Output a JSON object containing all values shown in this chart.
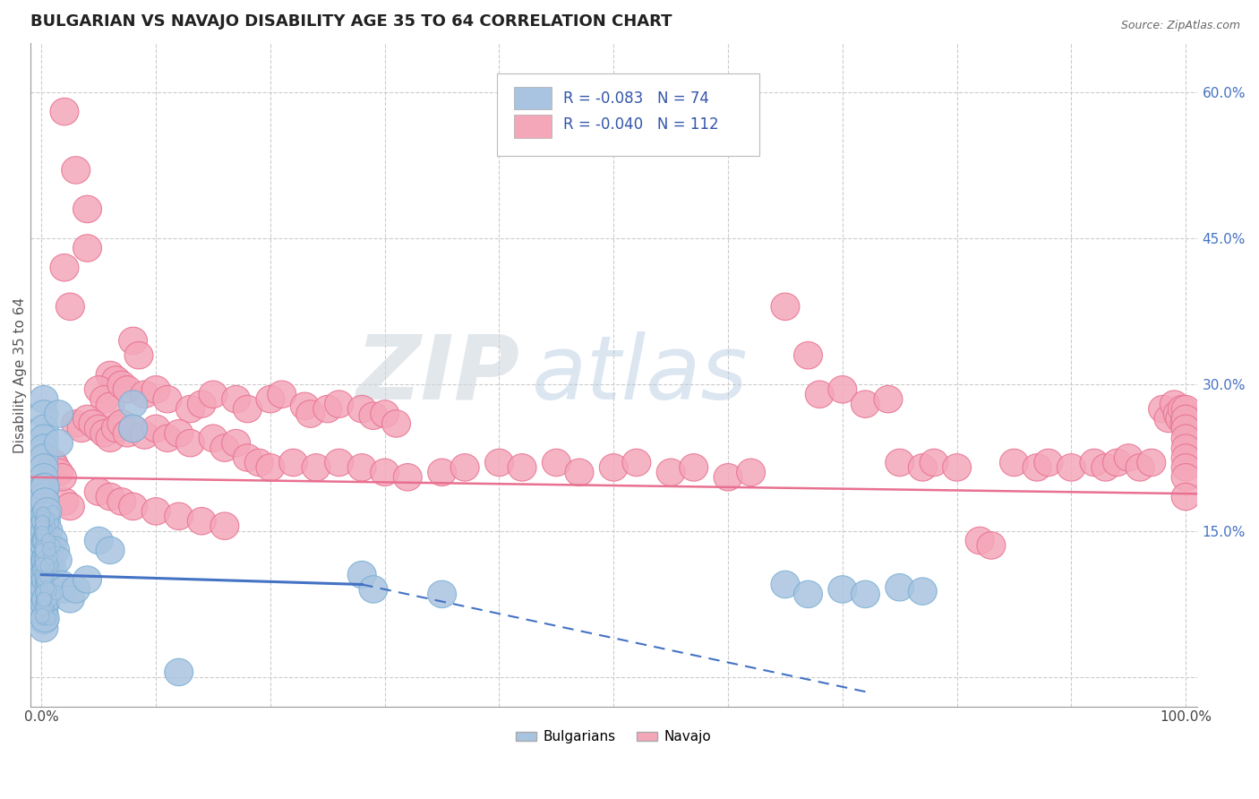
{
  "title": "BULGARIAN VS NAVAJO DISABILITY AGE 35 TO 64 CORRELATION CHART",
  "source": "Source: ZipAtlas.com",
  "ylabel": "Disability Age 35 to 64",
  "xlim": [
    -0.01,
    1.01
  ],
  "ylim": [
    -0.03,
    0.65
  ],
  "x_ticks": [
    0.0,
    0.1,
    0.2,
    0.3,
    0.4,
    0.5,
    0.6,
    0.7,
    0.8,
    0.9,
    1.0
  ],
  "x_tick_labels": [
    "0.0%",
    "",
    "",
    "",
    "",
    "",
    "",
    "",
    "",
    "",
    "100.0%"
  ],
  "y_ticks": [
    0.0,
    0.15,
    0.3,
    0.45,
    0.6
  ],
  "y_tick_labels": [
    "15.0%",
    "30.0%",
    "45.0%",
    "60.0%"
  ],
  "y_ticks_right": [
    0.15,
    0.3,
    0.45,
    0.6
  ],
  "watermark_zip": "ZIP",
  "watermark_atlas": "atlas",
  "bulgarian_color": "#a8c4e0",
  "bulgarian_edge": "#7aafd4",
  "navajo_color": "#f4a7b9",
  "navajo_edge": "#e87090",
  "bulgarian_line_color": "#4472c4",
  "navajo_line_color": "#e87090",
  "r_bulgarian": -0.083,
  "n_bulgarian": 74,
  "r_navajo": -0.04,
  "n_navajo": 112,
  "bulgarian_points": [
    [
      0.002,
      0.285
    ],
    [
      0.002,
      0.27
    ],
    [
      0.002,
      0.255
    ],
    [
      0.002,
      0.245
    ],
    [
      0.002,
      0.235
    ],
    [
      0.002,
      0.225
    ],
    [
      0.002,
      0.215
    ],
    [
      0.002,
      0.205
    ],
    [
      0.002,
      0.195
    ],
    [
      0.002,
      0.185
    ],
    [
      0.002,
      0.175
    ],
    [
      0.002,
      0.165
    ],
    [
      0.002,
      0.155
    ],
    [
      0.002,
      0.145
    ],
    [
      0.002,
      0.135
    ],
    [
      0.002,
      0.125
    ],
    [
      0.002,
      0.115
    ],
    [
      0.002,
      0.105
    ],
    [
      0.002,
      0.098
    ],
    [
      0.002,
      0.09
    ],
    [
      0.002,
      0.082
    ],
    [
      0.002,
      0.074
    ],
    [
      0.002,
      0.066
    ],
    [
      0.002,
      0.058
    ],
    [
      0.002,
      0.05
    ],
    [
      0.003,
      0.195
    ],
    [
      0.003,
      0.18
    ],
    [
      0.003,
      0.165
    ],
    [
      0.003,
      0.15
    ],
    [
      0.003,
      0.135
    ],
    [
      0.003,
      0.12
    ],
    [
      0.003,
      0.105
    ],
    [
      0.003,
      0.09
    ],
    [
      0.003,
      0.075
    ],
    [
      0.003,
      0.06
    ],
    [
      0.004,
      0.16
    ],
    [
      0.004,
      0.14
    ],
    [
      0.004,
      0.12
    ],
    [
      0.004,
      0.1
    ],
    [
      0.004,
      0.08
    ],
    [
      0.005,
      0.17
    ],
    [
      0.005,
      0.14
    ],
    [
      0.005,
      0.11
    ],
    [
      0.006,
      0.15
    ],
    [
      0.006,
      0.12
    ],
    [
      0.007,
      0.13
    ],
    [
      0.007,
      0.1
    ],
    [
      0.008,
      0.12
    ],
    [
      0.009,
      0.11
    ],
    [
      0.01,
      0.14
    ],
    [
      0.012,
      0.13
    ],
    [
      0.014,
      0.12
    ],
    [
      0.015,
      0.27
    ],
    [
      0.015,
      0.24
    ],
    [
      0.018,
      0.095
    ],
    [
      0.02,
      0.09
    ],
    [
      0.025,
      0.08
    ],
    [
      0.03,
      0.09
    ],
    [
      0.04,
      0.1
    ],
    [
      0.05,
      0.14
    ],
    [
      0.06,
      0.13
    ],
    [
      0.08,
      0.28
    ],
    [
      0.08,
      0.255
    ],
    [
      0.12,
      0.005
    ],
    [
      0.28,
      0.105
    ],
    [
      0.29,
      0.09
    ],
    [
      0.35,
      0.085
    ],
    [
      0.65,
      0.095
    ],
    [
      0.67,
      0.085
    ],
    [
      0.7,
      0.09
    ],
    [
      0.72,
      0.085
    ],
    [
      0.75,
      0.092
    ],
    [
      0.77,
      0.088
    ]
  ],
  "navajo_points": [
    [
      0.02,
      0.58
    ],
    [
      0.03,
      0.52
    ],
    [
      0.04,
      0.48
    ],
    [
      0.04,
      0.44
    ],
    [
      0.02,
      0.42
    ],
    [
      0.025,
      0.38
    ],
    [
      0.08,
      0.345
    ],
    [
      0.085,
      0.33
    ],
    [
      0.06,
      0.31
    ],
    [
      0.065,
      0.305
    ],
    [
      0.05,
      0.295
    ],
    [
      0.055,
      0.285
    ],
    [
      0.06,
      0.278
    ],
    [
      0.07,
      0.3
    ],
    [
      0.075,
      0.295
    ],
    [
      0.09,
      0.29
    ],
    [
      0.1,
      0.295
    ],
    [
      0.11,
      0.285
    ],
    [
      0.13,
      0.275
    ],
    [
      0.14,
      0.28
    ],
    [
      0.15,
      0.29
    ],
    [
      0.17,
      0.285
    ],
    [
      0.18,
      0.275
    ],
    [
      0.2,
      0.285
    ],
    [
      0.21,
      0.29
    ],
    [
      0.23,
      0.278
    ],
    [
      0.235,
      0.27
    ],
    [
      0.25,
      0.275
    ],
    [
      0.26,
      0.28
    ],
    [
      0.28,
      0.275
    ],
    [
      0.29,
      0.268
    ],
    [
      0.3,
      0.27
    ],
    [
      0.31,
      0.26
    ],
    [
      0.03,
      0.26
    ],
    [
      0.035,
      0.255
    ],
    [
      0.04,
      0.265
    ],
    [
      0.045,
      0.26
    ],
    [
      0.05,
      0.255
    ],
    [
      0.055,
      0.25
    ],
    [
      0.06,
      0.245
    ],
    [
      0.065,
      0.255
    ],
    [
      0.07,
      0.26
    ],
    [
      0.075,
      0.25
    ],
    [
      0.08,
      0.255
    ],
    [
      0.09,
      0.248
    ],
    [
      0.1,
      0.255
    ],
    [
      0.11,
      0.245
    ],
    [
      0.12,
      0.25
    ],
    [
      0.13,
      0.24
    ],
    [
      0.15,
      0.245
    ],
    [
      0.16,
      0.235
    ],
    [
      0.17,
      0.24
    ],
    [
      0.18,
      0.225
    ],
    [
      0.19,
      0.22
    ],
    [
      0.2,
      0.215
    ],
    [
      0.22,
      0.22
    ],
    [
      0.24,
      0.215
    ],
    [
      0.26,
      0.22
    ],
    [
      0.28,
      0.215
    ],
    [
      0.3,
      0.21
    ],
    [
      0.32,
      0.205
    ],
    [
      0.35,
      0.21
    ],
    [
      0.37,
      0.215
    ],
    [
      0.4,
      0.22
    ],
    [
      0.42,
      0.215
    ],
    [
      0.45,
      0.22
    ],
    [
      0.47,
      0.21
    ],
    [
      0.5,
      0.215
    ],
    [
      0.52,
      0.22
    ],
    [
      0.55,
      0.21
    ],
    [
      0.57,
      0.215
    ],
    [
      0.6,
      0.205
    ],
    [
      0.62,
      0.21
    ],
    [
      0.65,
      0.38
    ],
    [
      0.67,
      0.33
    ],
    [
      0.68,
      0.29
    ],
    [
      0.7,
      0.295
    ],
    [
      0.72,
      0.28
    ],
    [
      0.74,
      0.285
    ],
    [
      0.75,
      0.22
    ],
    [
      0.77,
      0.215
    ],
    [
      0.78,
      0.22
    ],
    [
      0.8,
      0.215
    ],
    [
      0.82,
      0.14
    ],
    [
      0.83,
      0.135
    ],
    [
      0.85,
      0.22
    ],
    [
      0.87,
      0.215
    ],
    [
      0.88,
      0.22
    ],
    [
      0.9,
      0.215
    ],
    [
      0.92,
      0.22
    ],
    [
      0.93,
      0.215
    ],
    [
      0.94,
      0.22
    ],
    [
      0.95,
      0.225
    ],
    [
      0.96,
      0.215
    ],
    [
      0.97,
      0.22
    ],
    [
      0.98,
      0.275
    ],
    [
      0.985,
      0.265
    ],
    [
      0.99,
      0.28
    ],
    [
      0.993,
      0.27
    ],
    [
      0.995,
      0.265
    ],
    [
      0.997,
      0.275
    ],
    [
      0.999,
      0.26
    ],
    [
      1.0,
      0.275
    ],
    [
      1.0,
      0.265
    ],
    [
      1.0,
      0.255
    ],
    [
      1.0,
      0.245
    ],
    [
      1.0,
      0.235
    ],
    [
      1.0,
      0.225
    ],
    [
      1.0,
      0.215
    ],
    [
      1.0,
      0.205
    ],
    [
      1.0,
      0.185
    ],
    [
      0.05,
      0.19
    ],
    [
      0.06,
      0.185
    ],
    [
      0.07,
      0.18
    ],
    [
      0.08,
      0.175
    ],
    [
      0.1,
      0.17
    ],
    [
      0.12,
      0.165
    ],
    [
      0.14,
      0.16
    ],
    [
      0.16,
      0.155
    ],
    [
      0.02,
      0.18
    ],
    [
      0.025,
      0.175
    ],
    [
      0.01,
      0.22
    ],
    [
      0.012,
      0.215
    ],
    [
      0.015,
      0.21
    ],
    [
      0.018,
      0.205
    ]
  ],
  "nav_line_y_start": 0.205,
  "nav_line_y_end": 0.188,
  "bg_line_x_start": 0.0,
  "bg_line_x_end": 0.28,
  "bg_line_y_start": 0.105,
  "bg_line_y_end": 0.095,
  "dashed_line_x_start": 0.28,
  "dashed_line_x_end": 0.72,
  "dashed_line_y_start": 0.095,
  "dashed_line_y_end": -0.015
}
